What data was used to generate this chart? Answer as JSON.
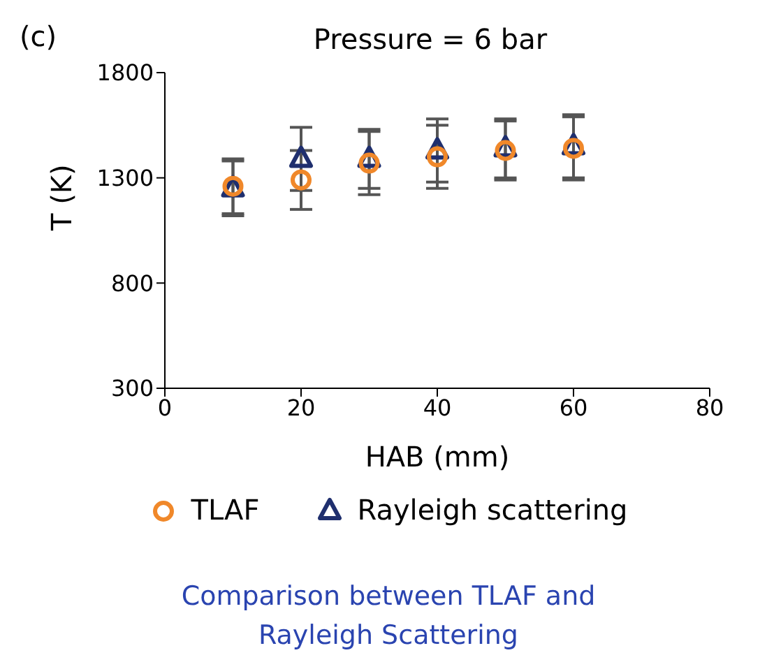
{
  "chart_data": {
    "type": "scatter",
    "title": "Pressure = 6 bar",
    "xlabel": "HAB (mm)",
    "ylabel": "T (K)",
    "annotations": [
      "(c)",
      "Comparison between TLAF and Rayleigh Scattering"
    ],
    "x": [
      10,
      20,
      30,
      40,
      50,
      60
    ],
    "series": [
      {
        "name": "TLAF",
        "color": "#f0882a",
        "marker": "circle",
        "values": [
          1260,
          1290,
          1370,
          1400,
          1430,
          1440
        ],
        "errors": [
          130,
          140,
          150,
          150,
          140,
          150
        ]
      },
      {
        "name": "Rayleigh scattering",
        "color": "#1f2f6e",
        "marker": "triangle",
        "values": [
          1250,
          1390,
          1390,
          1430,
          1440,
          1450
        ],
        "errors": [
          130,
          150,
          140,
          150,
          140,
          150
        ]
      }
    ],
    "xlim": [
      0,
      80
    ],
    "xticks": [
      0,
      20,
      40,
      60,
      80
    ],
    "ylim": [
      300,
      1800
    ],
    "yticks": [
      300,
      800,
      1300,
      1800
    ],
    "grid": false,
    "legend": "bottom"
  }
}
